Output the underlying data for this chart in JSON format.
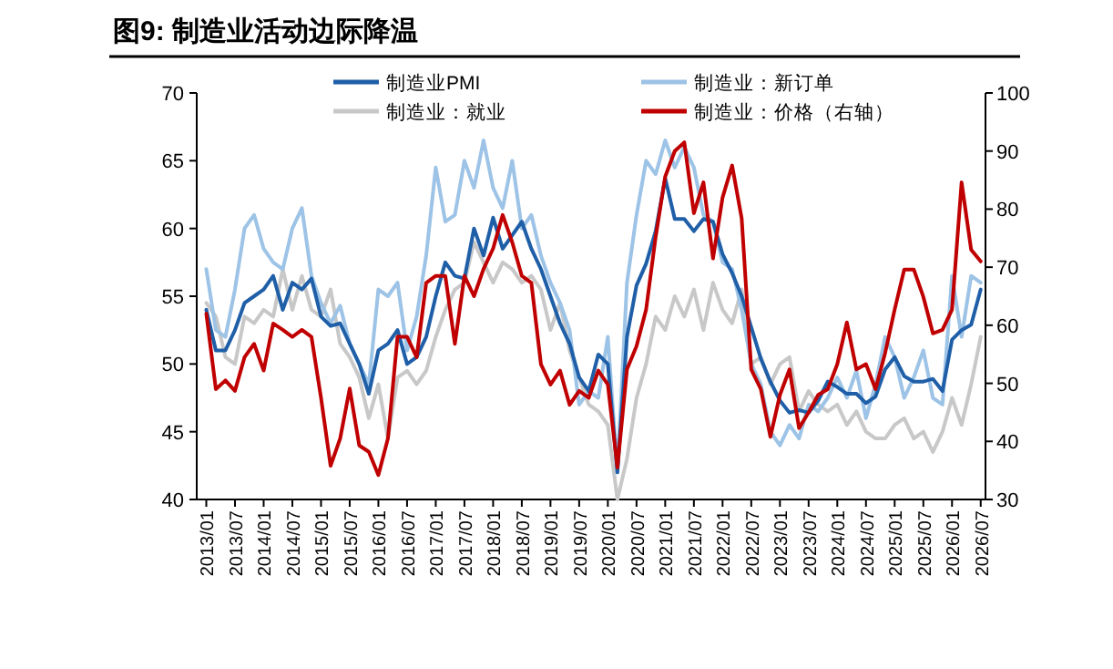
{
  "chart_data": {
    "type": "line",
    "title": "图9:  制造业活动边际降温",
    "legend": "top",
    "grid": false,
    "marker": "none",
    "line_style": "solid",
    "x": [
      "2013-01",
      "2013-03",
      "2013-05",
      "2013-07",
      "2013-09",
      "2013-11",
      "2014-01",
      "2014-03",
      "2014-05",
      "2014-07",
      "2014-09",
      "2014-11",
      "2015-01",
      "2015-03",
      "2015-05",
      "2015-07",
      "2015-09",
      "2015-11",
      "2016-01",
      "2016-03",
      "2016-05",
      "2016-07",
      "2016-09",
      "2016-11",
      "2017-01",
      "2017-03",
      "2017-05",
      "2017-07",
      "2017-09",
      "2017-11",
      "2018-01",
      "2018-03",
      "2018-05",
      "2018-07",
      "2018-09",
      "2018-11",
      "2019-01",
      "2019-03",
      "2019-05",
      "2019-07",
      "2019-09",
      "2019-11",
      "2020-01",
      "2020-03",
      "2020-05",
      "2020-07",
      "2020-09",
      "2020-11",
      "2021-01",
      "2021-03",
      "2021-05",
      "2021-07",
      "2021-09",
      "2021-11",
      "2022-01",
      "2022-03",
      "2022-05",
      "2022-07",
      "2022-09",
      "2022-11",
      "2023-01",
      "2023-03",
      "2023-05",
      "2023-07",
      "2023-09",
      "2023-11",
      "2024-01",
      "2024-03",
      "2024-05",
      "2024-07",
      "2024-09",
      "2024-11",
      "2025-01",
      "2025-03",
      "2025-05",
      "2025-07",
      "2025-09",
      "2025-11",
      "2026-01",
      "2026-03",
      "2026-05",
      "2026-07"
    ],
    "xlim": [
      "2012-11",
      "2026-08"
    ],
    "xticks": [
      {
        "value": "2013-01",
        "label": "2013/01"
      },
      {
        "value": "2013-07",
        "label": "2013/07"
      },
      {
        "value": "2014-01",
        "label": "2014/01"
      },
      {
        "value": "2014-07",
        "label": "2014/07"
      },
      {
        "value": "2015-01",
        "label": "2015/01"
      },
      {
        "value": "2015-07",
        "label": "2015/07"
      },
      {
        "value": "2016-01",
        "label": "2016/01"
      },
      {
        "value": "2016-07",
        "label": "2016/07"
      },
      {
        "value": "2017-01",
        "label": "2017/01"
      },
      {
        "value": "2017-07",
        "label": "2017/07"
      },
      {
        "value": "2018-01",
        "label": "2018/01"
      },
      {
        "value": "2018-07",
        "label": "2018/07"
      },
      {
        "value": "2019-01",
        "label": "2019/01"
      },
      {
        "value": "2019-07",
        "label": "2019/07"
      },
      {
        "value": "2020-01",
        "label": "2020/01"
      },
      {
        "value": "2020-07",
        "label": "2020/07"
      },
      {
        "value": "2021-01",
        "label": "2021/01"
      },
      {
        "value": "2021-07",
        "label": "2021/07"
      },
      {
        "value": "2022-01",
        "label": "2022/01"
      },
      {
        "value": "2022-07",
        "label": "2022/07"
      },
      {
        "value": "2023-01",
        "label": "2023/01"
      },
      {
        "value": "2023-07",
        "label": "2023/07"
      },
      {
        "value": "2024-01",
        "label": "2024/01"
      },
      {
        "value": "2024-07",
        "label": "2024/07"
      },
      {
        "value": "2025-01",
        "label": "2025/01"
      },
      {
        "value": "2025-07",
        "label": "2025/07"
      },
      {
        "value": "2026-01",
        "label": "2026/01"
      },
      {
        "value": "2026-07",
        "label": "2026/07"
      }
    ],
    "ylim": [
      40,
      70
    ],
    "yticks": [
      40,
      45,
      50,
      55,
      60,
      65,
      70
    ],
    "y2lim": [
      30,
      100
    ],
    "y2ticks": [
      30,
      40,
      50,
      60,
      70,
      80,
      90,
      100
    ],
    "series": [
      {
        "name": "制造业：就业",
        "color": "#c8c8c8",
        "values": [
          54.5,
          53.5,
          50.5,
          50.0,
          53.5,
          53.0,
          54.0,
          53.5,
          57.0,
          54.0,
          56.5,
          54.0,
          53.5,
          55.5,
          51.5,
          50.5,
          49.0,
          46.0,
          48.5,
          44.5,
          49.0,
          49.5,
          48.5,
          49.5,
          52.0,
          54.0,
          55.5,
          56.0,
          59.0,
          57.5,
          56.0,
          57.5,
          57.0,
          56.0,
          56.5,
          55.5,
          52.5,
          54.5,
          51.0,
          49.0,
          47.0,
          46.5,
          45.5,
          40.0,
          43.0,
          47.5,
          50.0,
          53.5,
          52.5,
          55.0,
          53.5,
          55.5,
          52.5,
          56.0,
          54.0,
          53.0,
          55.5,
          50.0,
          50.5,
          48.5,
          50.0,
          50.5,
          46.5,
          48.0,
          47.0,
          46.5,
          47.0,
          45.5,
          46.5,
          45.0,
          44.5,
          44.5,
          45.5,
          46.0,
          44.5,
          45.0,
          43.5,
          45.0,
          47.5,
          45.5,
          48.5,
          52.0
        ]
      },
      {
        "name": "制造业：新订单",
        "color": "#9dc3e6",
        "values": [
          57.0,
          52.5,
          52.0,
          55.5,
          60.0,
          61.0,
          58.5,
          57.5,
          57.0,
          60.0,
          61.5,
          56.5,
          54.5,
          53.0,
          54.3,
          51.5,
          50.0,
          48.5,
          55.5,
          55.0,
          56.0,
          51.0,
          53.5,
          58.0,
          64.5,
          60.5,
          61.0,
          65.0,
          63.0,
          66.5,
          63.0,
          61.5,
          65.0,
          60.0,
          61.0,
          58.0,
          56.0,
          54.5,
          52.5,
          47.0,
          48.0,
          47.5,
          52.0,
          42.0,
          56.0,
          61.0,
          65.0,
          64.0,
          66.5,
          64.5,
          66.0,
          64.5,
          61.0,
          60.5,
          57.5,
          57.0,
          54.0,
          50.0,
          48.5,
          45.0,
          44.0,
          45.5,
          44.5,
          47.0,
          46.5,
          47.5,
          49.0,
          47.5,
          49.5,
          46.0,
          48.5,
          52.0,
          50.5,
          47.5,
          49.0,
          51.0,
          47.5,
          47.0,
          56.5,
          52.0,
          56.5,
          56.0
        ]
      },
      {
        "name": "制造业PMI",
        "color": "#1f5fa8",
        "values": [
          54.0,
          51.0,
          51.0,
          52.5,
          54.5,
          55.0,
          55.5,
          56.5,
          54.0,
          56.0,
          55.5,
          56.3,
          53.5,
          52.8,
          53.0,
          51.5,
          50.0,
          47.8,
          51.0,
          51.5,
          52.5,
          50.0,
          50.5,
          52.0,
          55.0,
          57.5,
          56.5,
          56.3,
          60.0,
          58.0,
          60.8,
          58.5,
          59.5,
          60.5,
          58.5,
          57.0,
          55.0,
          53.0,
          51.5,
          49.0,
          48.0,
          50.7,
          50.0,
          42.0,
          52.0,
          55.8,
          57.4,
          59.8,
          63.7,
          60.7,
          60.7,
          59.8,
          60.7,
          60.5,
          58.1,
          56.7,
          55.0,
          52.7,
          50.4,
          48.7,
          47.3,
          46.4,
          46.6,
          46.4,
          47.3,
          48.7,
          48.3,
          47.8,
          47.8,
          47.1,
          47.6,
          49.6,
          50.5,
          49.1,
          48.7,
          48.7,
          48.9,
          48.0,
          51.8,
          52.5,
          52.9,
          55.5
        ]
      },
      {
        "name": "制造业：价格（右轴）",
        "color": "#c00000",
        "axis": "y2",
        "values": [
          62.0,
          49.0,
          50.5,
          48.7,
          54.5,
          56.8,
          52.2,
          60.3,
          59.2,
          58.0,
          59.2,
          58.0,
          47.5,
          35.8,
          40.5,
          49.1,
          39.3,
          38.2,
          34.2,
          40.5,
          58.0,
          58.0,
          54.5,
          67.3,
          68.5,
          68.5,
          56.8,
          68.5,
          65.0,
          69.7,
          73.2,
          79.0,
          74.3,
          68.5,
          67.3,
          53.3,
          49.8,
          52.2,
          46.3,
          48.7,
          47.5,
          52.2,
          49.8,
          35.5,
          52.4,
          56.4,
          62.7,
          75.2,
          85.6,
          90.0,
          91.5,
          79.3,
          84.6,
          71.5,
          82.0,
          87.5,
          78.4,
          52.4,
          49.0,
          40.8,
          48.0,
          52.4,
          42.3,
          45.0,
          48.0,
          49.0,
          53.3,
          60.5,
          52.4,
          53.3,
          49.0,
          55.2,
          62.7,
          69.6,
          69.6,
          64.9,
          58.6,
          59.2,
          62.7,
          84.6,
          73.0,
          71.0
        ]
      }
    ]
  }
}
